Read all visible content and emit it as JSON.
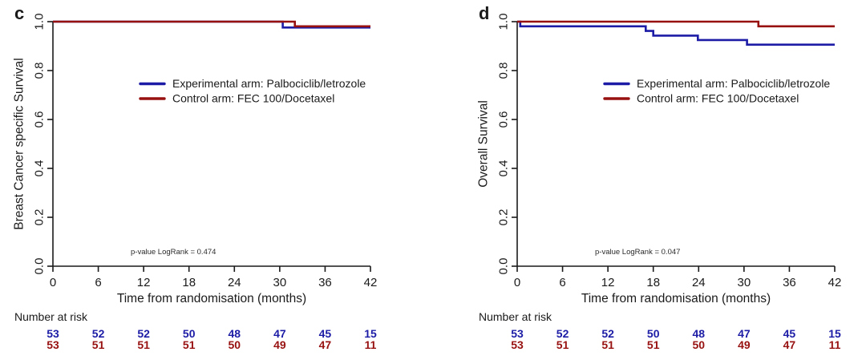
{
  "figure_name": "kaplan-meier-survival-panels",
  "colors": {
    "experimental": "#1c1ca6",
    "control": "#981111",
    "axis": "#1a1a1a",
    "text": "#1a1a1a",
    "pvalue_text": "#2b2b2b"
  },
  "chart_data": [
    {
      "type": "line",
      "panel_label": "c",
      "ylabel": "Breast Cancer specific Survival",
      "xlabel": "Time from randomisation (months)",
      "xlim": [
        0,
        42
      ],
      "ylim": [
        0.0,
        1.0
      ],
      "x_ticks": [
        0,
        6,
        12,
        18,
        24,
        30,
        36,
        42
      ],
      "y_ticks": [
        {
          "v": 1.0,
          "label": "1.0"
        },
        {
          "v": 0.8,
          "label": "0.8"
        },
        {
          "v": 0.6,
          "label": "0.6"
        },
        {
          "v": 0.4,
          "label": "0.4"
        },
        {
          "v": 0.2,
          "label": "0.2"
        },
        {
          "v": 0.0,
          "label": "0.0"
        }
      ],
      "grid": false,
      "legend_position": "center",
      "p_value_label": "p-value LogRank = 0.474",
      "series": [
        {
          "name": "Experimental arm: Palbociclib/letrozole",
          "color_key": "experimental",
          "points": [
            [
              0,
              1.0
            ],
            [
              30.4,
              1.0
            ],
            [
              30.4,
              0.976
            ],
            [
              42,
              0.976
            ]
          ]
        },
        {
          "name": "Control arm: FEC 100/Docetaxel",
          "color_key": "control",
          "points": [
            [
              0,
              1.0
            ],
            [
              32.0,
              1.0
            ],
            [
              32.0,
              0.981
            ],
            [
              42,
              0.981
            ]
          ]
        }
      ],
      "risk_table": {
        "title": "Number at risk",
        "times": [
          0,
          6,
          12,
          18,
          24,
          30,
          36,
          42
        ],
        "rows": [
          {
            "color_key": "experimental",
            "values": [
              53,
              52,
              52,
              50,
              48,
              47,
              45,
              15
            ]
          },
          {
            "color_key": "control",
            "values": [
              53,
              51,
              51,
              51,
              50,
              49,
              47,
              11
            ]
          }
        ]
      },
      "layout": {
        "plot_left": 66
      }
    },
    {
      "type": "line",
      "panel_label": "d",
      "ylabel": "Overall Survival",
      "xlabel": "Time from randomisation (months)",
      "xlim": [
        0,
        42
      ],
      "ylim": [
        0.0,
        1.0
      ],
      "x_ticks": [
        0,
        6,
        12,
        18,
        24,
        30,
        36,
        42
      ],
      "y_ticks": [
        {
          "v": 1.0,
          "label": "1.0"
        },
        {
          "v": 0.8,
          "label": "0.8"
        },
        {
          "v": 0.6,
          "label": "0.6"
        },
        {
          "v": 0.4,
          "label": "0.4"
        },
        {
          "v": 0.2,
          "label": "0.2"
        },
        {
          "v": 0.0,
          "label": "0.0"
        }
      ],
      "grid": false,
      "legend_position": "center",
      "p_value_label": "p-value LogRank = 0.047",
      "series": [
        {
          "name": "Experimental arm: Palbociclib/letrozole",
          "color_key": "experimental",
          "points": [
            [
              0,
              1.0
            ],
            [
              0.4,
              1.0
            ],
            [
              0.4,
              0.981
            ],
            [
              17.0,
              0.981
            ],
            [
              17.0,
              0.962
            ],
            [
              18.0,
              0.962
            ],
            [
              18.0,
              0.943
            ],
            [
              23.9,
              0.943
            ],
            [
              23.9,
              0.925
            ],
            [
              30.4,
              0.925
            ],
            [
              30.4,
              0.906
            ],
            [
              42,
              0.906
            ]
          ]
        },
        {
          "name": "Control arm: FEC 100/Docetaxel",
          "color_key": "control",
          "points": [
            [
              0,
              1.0
            ],
            [
              31.9,
              1.0
            ],
            [
              31.9,
              0.981
            ],
            [
              42,
              0.981
            ]
          ]
        }
      ],
      "risk_table": {
        "title": "Number at risk",
        "times": [
          0,
          6,
          12,
          18,
          24,
          30,
          36,
          42
        ],
        "rows": [
          {
            "color_key": "experimental",
            "values": [
              53,
              52,
              52,
              50,
              48,
              47,
              45,
              15
            ]
          },
          {
            "color_key": "control",
            "values": [
              53,
              51,
              51,
              51,
              50,
              49,
              47,
              11
            ]
          }
        ]
      },
      "layout": {
        "plot_left": 105
      }
    }
  ]
}
